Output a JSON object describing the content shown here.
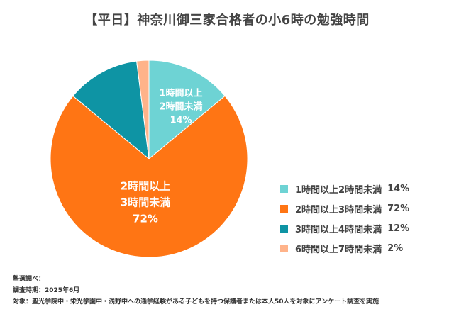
{
  "chart_data": {
    "type": "pie",
    "title": "【平日】神奈川御三家合格者の小6時の勉強時間",
    "start": "top",
    "direction": "clockwise",
    "slices": [
      {
        "name": "1時間以上2時間未満",
        "slice_label_lines": [
          "1時間以上",
          "2時間未満"
        ],
        "value": 14,
        "value_label": "14%",
        "color": "#6ED3D4",
        "legend_value": "14%"
      },
      {
        "name": "2時間以上3時間未満",
        "slice_label_lines": [
          "2時間以上",
          "3時間未満"
        ],
        "value": 72,
        "value_label": "72%",
        "color": "#FF7514",
        "legend_value": "72%"
      },
      {
        "name": "3時間以上4時間未満",
        "slice_label_lines": [],
        "value": 12,
        "value_label": "",
        "color": "#0E94A4",
        "legend_value": "12%"
      },
      {
        "name": "6時間以上7時間未満",
        "slice_label_lines": [],
        "value": 2,
        "value_label": "",
        "color": "#FFB38A",
        "legend_value": "2%"
      }
    ],
    "legend_position": "right"
  },
  "footnote": {
    "line1": "塾選調べ：",
    "line2": "調査時期：2025年6月",
    "line3": "対象：聖光学院中・栄光学園中・浅野中への通学経験がある子どもを持つ保護者または本人50人を対象にアンケート調査を実施"
  }
}
